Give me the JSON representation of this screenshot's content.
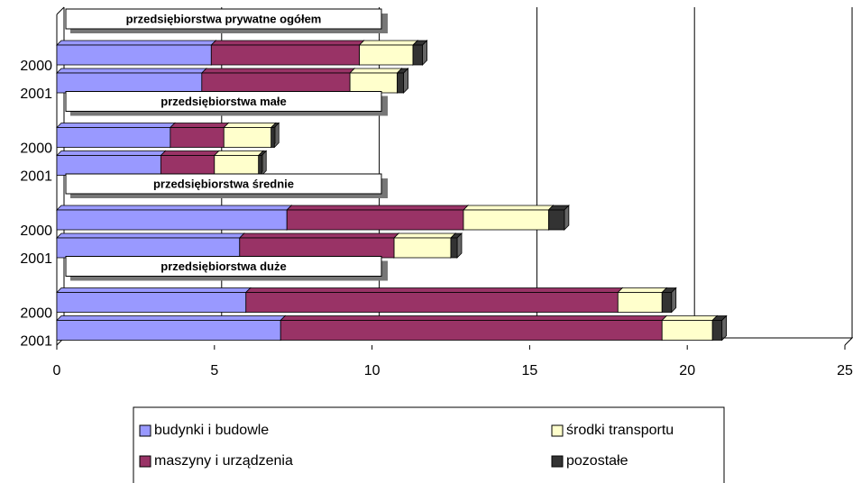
{
  "chart_data": {
    "type": "bar",
    "orientation": "horizontal",
    "stacked": true,
    "group_labels": [
      "przedsiębiorstwa prywatne ogółem",
      "przedsiębiorstwa małe",
      "przedsiębiorstwa średnie",
      "przedsiębiorstwa duże"
    ],
    "categories": [
      null,
      "2000",
      "2001",
      null,
      "2000",
      "2001",
      null,
      "2000",
      "2001",
      null,
      "2000",
      "2001"
    ],
    "series": [
      {
        "name": "budynki i budowle",
        "color": "#9999ff",
        "values": [
          null,
          4.9,
          4.6,
          null,
          3.6,
          3.3,
          null,
          7.3,
          5.8,
          null,
          6.0,
          7.1
        ]
      },
      {
        "name": "maszyny i urządzenia",
        "color": "#993366",
        "values": [
          null,
          4.7,
          4.7,
          null,
          1.7,
          1.7,
          null,
          5.6,
          4.9,
          null,
          11.8,
          12.1
        ]
      },
      {
        "name": "środki transportu",
        "color": "#ffffcc",
        "values": [
          null,
          1.7,
          1.5,
          null,
          1.5,
          1.4,
          null,
          2.7,
          1.8,
          null,
          1.4,
          1.6
        ]
      },
      {
        "name": "pozostałe",
        "color": "#333333",
        "values": [
          null,
          0.3,
          0.2,
          null,
          0.1,
          0.1,
          null,
          0.5,
          0.2,
          null,
          0.3,
          0.3
        ]
      }
    ],
    "xlim": [
      0,
      25
    ],
    "xticks": [
      0,
      5,
      10,
      15,
      20,
      25
    ],
    "grid": true
  }
}
